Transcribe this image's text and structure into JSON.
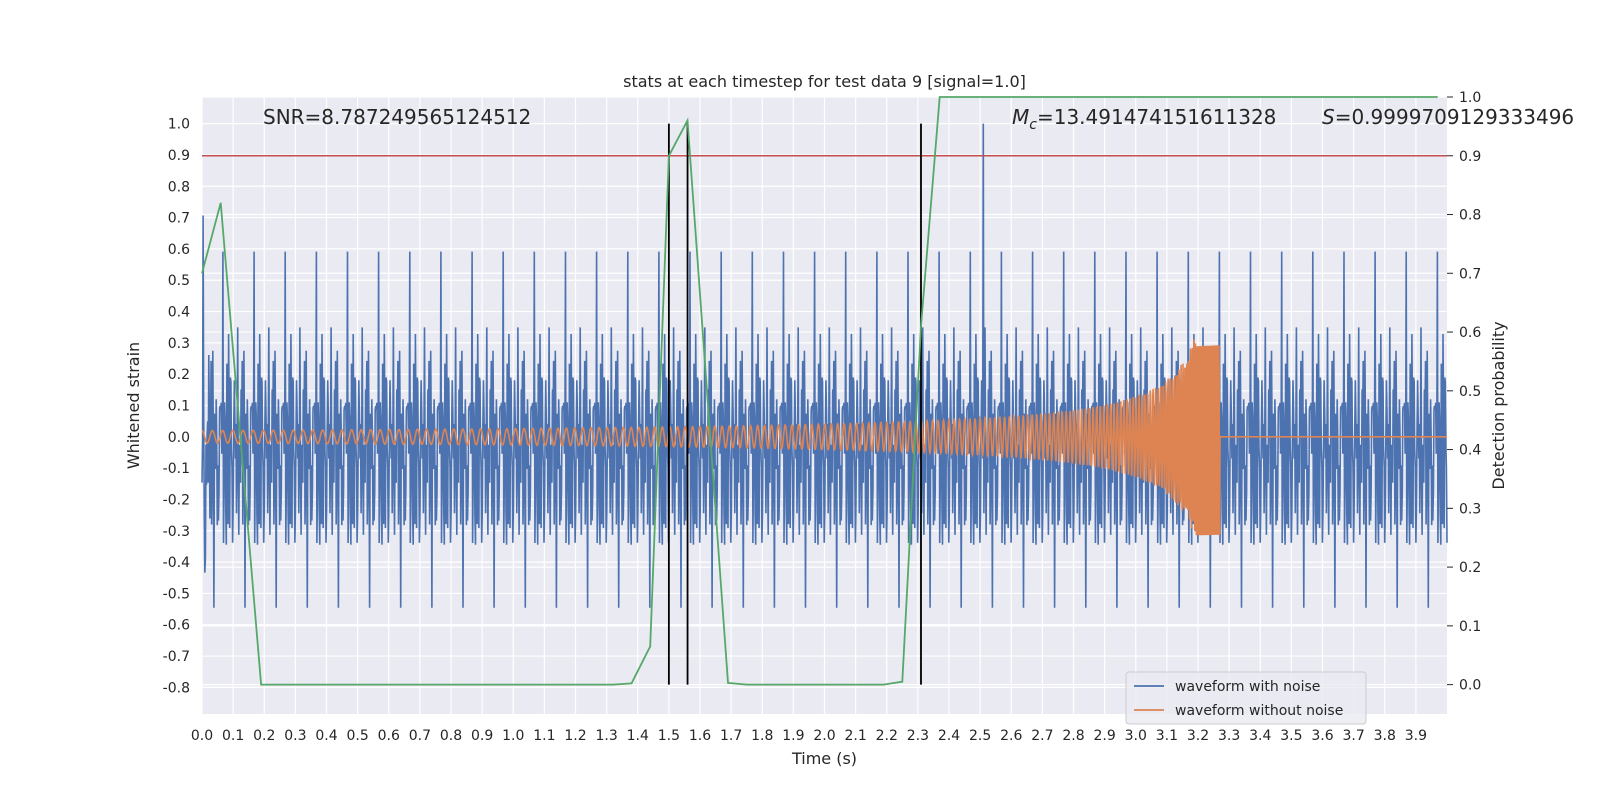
{
  "chart_data": {
    "type": "line",
    "title": "stats at each timestep for test data 9 [signal=1.0]",
    "xlabel": "Time (s)",
    "ylabel_left": "Whitened strain",
    "ylabel_right": "Detection probability",
    "xlim": [
      0.0,
      4.0
    ],
    "ylim_left": [
      -0.885,
      1.085
    ],
    "ylim_right": [
      -0.05,
      1.0
    ],
    "x_ticks": [
      "0.0",
      "0.1",
      "0.2",
      "0.3",
      "0.4",
      "0.5",
      "0.6",
      "0.7",
      "0.8",
      "0.9",
      "1.0",
      "1.1",
      "1.2",
      "1.3",
      "1.4",
      "1.5",
      "1.6",
      "1.7",
      "1.8",
      "1.9",
      "2.0",
      "2.1",
      "2.2",
      "2.3",
      "2.4",
      "2.5",
      "2.6",
      "2.7",
      "2.8",
      "2.9",
      "3.0",
      "3.1",
      "3.2",
      "3.3",
      "3.4",
      "3.5",
      "3.6",
      "3.7",
      "3.8",
      "3.9"
    ],
    "y_ticks_left": [
      "-0.8",
      "-0.7",
      "-0.6",
      "-0.5",
      "-0.4",
      "-0.3",
      "-0.2",
      "-0.1",
      "0.0",
      "0.1",
      "0.2",
      "0.3",
      "0.4",
      "0.5",
      "0.6",
      "0.7",
      "0.8",
      "0.9",
      "1.0"
    ],
    "y_ticks_right": [
      "0.0",
      "0.1",
      "0.2",
      "0.3",
      "0.4",
      "0.5",
      "0.6",
      "0.7",
      "0.8",
      "0.9",
      "1.0"
    ],
    "grid": true,
    "legend_placement": "lower-right",
    "annotations": {
      "snr": "SNR=8.787249565124512",
      "mc_symbol": "M",
      "mc_sub": "c",
      "mc_value": "=13.491474151611328",
      "s_symbol": "S",
      "s_value": "=0.9999709129333496"
    },
    "threshold_line": {
      "axis": "right",
      "y": 0.9,
      "color": "#c44e52"
    },
    "vertical_lines_x": [
      1.5,
      1.56,
      2.31
    ],
    "series": [
      {
        "name": "waveform with noise",
        "axis": "left",
        "color": "#4c72b0",
        "description_stats": {
          "y_min": -0.79,
          "y_max": 1.0,
          "spike_x": 2.51,
          "spike_y": 1.0
        }
      },
      {
        "name": "waveform without noise",
        "axis": "left",
        "color": "#dd8452",
        "chirp": {
          "x_start": 0.0,
          "x_merge": 3.27,
          "amp_start": 0.02,
          "amp_peak": 0.32,
          "freq_start_hz": 30,
          "freq_end_hz": 200
        }
      },
      {
        "name": "detection probability",
        "axis": "right",
        "color": "#55a868",
        "x": [
          0.0,
          0.06,
          0.19,
          0.25,
          1.32,
          1.38,
          1.44,
          1.5,
          1.56,
          1.69,
          1.75,
          2.19,
          2.25,
          2.31,
          2.37,
          3.97
        ],
        "y": [
          0.7,
          0.82,
          0.0,
          0.0,
          0.0,
          0.002,
          0.065,
          0.9,
          0.96,
          0.003,
          0.0,
          0.0,
          0.005,
          0.61,
          1.0,
          1.0
        ]
      }
    ]
  }
}
